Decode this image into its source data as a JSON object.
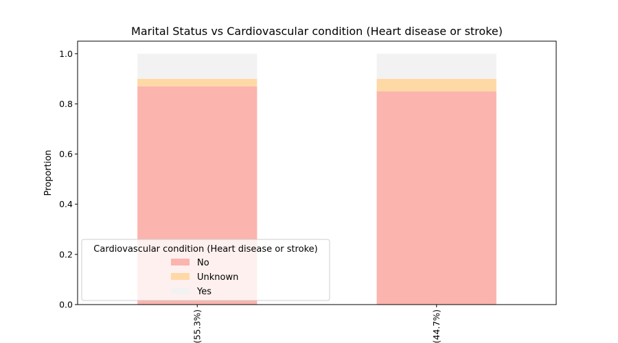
{
  "chart_data": {
    "type": "bar",
    "stacked": true,
    "title": "Marital Status vs Cardiovascular condition (Heart disease or stroke)",
    "xlabel": "",
    "ylabel": "Proportion",
    "categories": [
      "(55.3%)",
      "(44.7%)"
    ],
    "ylim": [
      0,
      1.05
    ],
    "yticks": [
      "0.0",
      "0.2",
      "0.4",
      "0.6",
      "0.8",
      "1.0"
    ],
    "series": [
      {
        "name": "No",
        "color": "#fbb4ae",
        "values": [
          0.87,
          0.85
        ]
      },
      {
        "name": "Unknown",
        "color": "#fed9a6",
        "values": [
          0.03,
          0.05
        ]
      },
      {
        "name": "Yes",
        "color": "#f2f2f2",
        "values": [
          0.1,
          0.1
        ]
      }
    ],
    "legend": {
      "title": "Cardiovascular condition (Heart disease or stroke)",
      "placement": "lower-left"
    },
    "grid": false
  }
}
